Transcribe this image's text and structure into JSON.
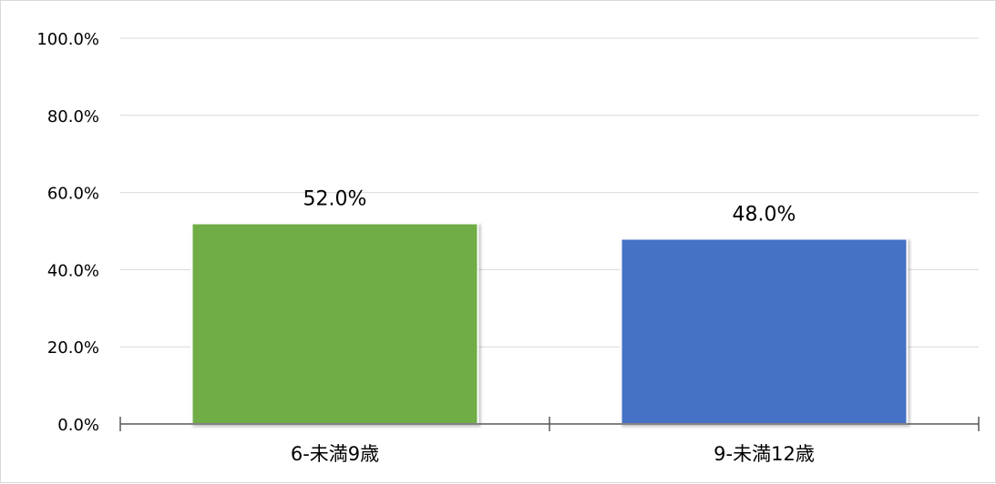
{
  "chart_data": {
    "type": "bar",
    "title": "",
    "xlabel": "",
    "ylabel": "",
    "categories": [
      "6-未満9歳",
      "9-未満12歳"
    ],
    "values": [
      52.0,
      48.0
    ],
    "value_labels": [
      "52.0%",
      "48.0%"
    ],
    "bar_colors": [
      "#70ad47",
      "#4472c4"
    ],
    "ylim": [
      0,
      100
    ],
    "yticks": [
      0,
      20,
      40,
      60,
      80,
      100
    ],
    "ytick_labels": [
      "0.0%",
      "20.0%",
      "40.0%",
      "60.0%",
      "80.0%",
      "100.0%"
    ],
    "grid": true,
    "legend": "none"
  }
}
